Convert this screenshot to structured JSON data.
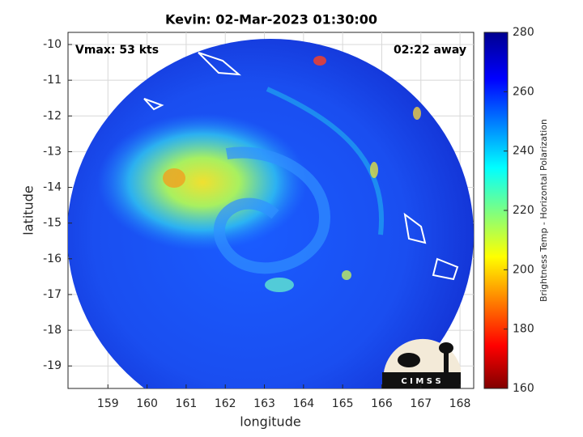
{
  "chart_data": {
    "type": "image-map",
    "title": "Kevin: 02-Mar-2023 01:30:00",
    "xlabel": "longitude",
    "ylabel": "latitude",
    "xlim": [
      157.98,
      168.35
    ],
    "ylim": [
      -19.63,
      -9.66
    ],
    "xticks": [
      159,
      160,
      161,
      162,
      163,
      164,
      165,
      166,
      167,
      168
    ],
    "yticks": [
      -19,
      -18,
      -17,
      -16,
      -15,
      -14,
      -13,
      -12,
      -11,
      -10
    ],
    "grid": true,
    "annotations": {
      "left": "Vmax: 53 kts",
      "right": "02:22 away"
    },
    "logo_text": "C I M S S",
    "colorbar": {
      "label": "Brightness Temp - Horizontal Polarization",
      "lim": [
        160,
        280
      ],
      "ticks": [
        160,
        180,
        200,
        220,
        240,
        260,
        280
      ]
    }
  }
}
